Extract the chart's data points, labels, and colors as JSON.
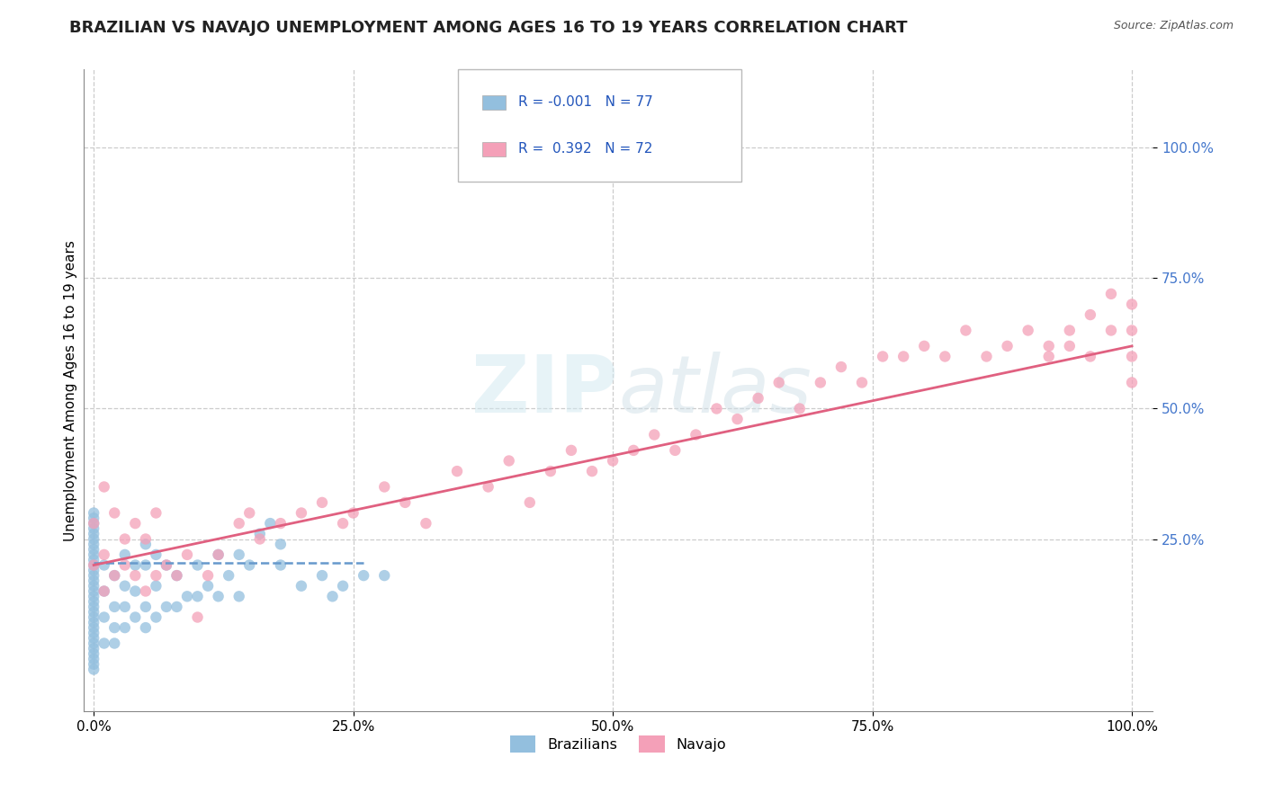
{
  "title": "BRAZILIAN VS NAVAJO UNEMPLOYMENT AMONG AGES 16 TO 19 YEARS CORRELATION CHART",
  "source": "Source: ZipAtlas.com",
  "ylabel_label": "Unemployment Among Ages 16 to 19 years",
  "x_tick_labels": [
    "0.0%",
    "25.0%",
    "50.0%",
    "75.0%",
    "100.0%"
  ],
  "x_tick_values": [
    0,
    25,
    50,
    75,
    100
  ],
  "y_tick_labels": [
    "25.0%",
    "50.0%",
    "75.0%",
    "100.0%"
  ],
  "y_tick_values": [
    25,
    50,
    75,
    100
  ],
  "xlim": [
    -1,
    102
  ],
  "ylim": [
    -8,
    115
  ],
  "blue_color": "#93bfde",
  "pink_color": "#f4a0b8",
  "blue_line_color": "#6699cc",
  "pink_line_color": "#e06080",
  "title_fontsize": 13,
  "axis_label_fontsize": 11,
  "tick_fontsize": 11,
  "background_color": "#ffffff",
  "grid_color": "#cccccc",
  "blue_scatter_x": [
    0,
    0,
    0,
    0,
    0,
    0,
    0,
    0,
    0,
    0,
    0,
    0,
    0,
    0,
    0,
    0,
    0,
    0,
    0,
    0,
    0,
    0,
    0,
    0,
    0,
    0,
    0,
    0,
    0,
    0,
    0,
    1,
    1,
    1,
    1,
    2,
    2,
    2,
    2,
    3,
    3,
    3,
    3,
    4,
    4,
    4,
    5,
    5,
    5,
    5,
    6,
    6,
    6,
    7,
    7,
    8,
    8,
    9,
    10,
    10,
    11,
    12,
    12,
    13,
    14,
    14,
    15,
    16,
    17,
    18,
    18,
    20,
    22,
    23,
    24,
    26,
    28
  ],
  "blue_scatter_y": [
    0,
    1,
    2,
    3,
    4,
    5,
    6,
    7,
    8,
    9,
    10,
    11,
    12,
    13,
    14,
    15,
    16,
    17,
    18,
    19,
    20,
    21,
    22,
    23,
    24,
    25,
    26,
    27,
    28,
    29,
    30,
    5,
    10,
    15,
    20,
    5,
    8,
    12,
    18,
    8,
    12,
    16,
    22,
    10,
    15,
    20,
    8,
    12,
    20,
    24,
    10,
    16,
    22,
    12,
    20,
    12,
    18,
    14,
    14,
    20,
    16,
    14,
    22,
    18,
    14,
    22,
    20,
    26,
    28,
    20,
    24,
    16,
    18,
    14,
    16,
    18,
    18
  ],
  "pink_scatter_x": [
    0,
    0,
    1,
    1,
    1,
    2,
    2,
    3,
    3,
    4,
    4,
    5,
    5,
    6,
    6,
    7,
    8,
    9,
    10,
    11,
    12,
    14,
    15,
    16,
    18,
    20,
    22,
    24,
    25,
    28,
    30,
    32,
    35,
    38,
    40,
    42,
    44,
    46,
    48,
    50,
    52,
    54,
    56,
    58,
    60,
    62,
    64,
    66,
    68,
    70,
    72,
    74,
    76,
    78,
    80,
    82,
    84,
    86,
    88,
    90,
    92,
    94,
    96,
    98,
    100,
    100,
    100,
    100,
    98,
    96,
    94,
    92
  ],
  "pink_scatter_y": [
    20,
    28,
    15,
    22,
    35,
    18,
    30,
    20,
    25,
    18,
    28,
    15,
    25,
    18,
    30,
    20,
    18,
    22,
    10,
    18,
    22,
    28,
    30,
    25,
    28,
    30,
    32,
    28,
    30,
    35,
    32,
    28,
    38,
    35,
    40,
    32,
    38,
    42,
    38,
    40,
    42,
    45,
    42,
    45,
    50,
    48,
    52,
    55,
    50,
    55,
    58,
    55,
    60,
    60,
    62,
    60,
    65,
    60,
    62,
    65,
    60,
    62,
    60,
    65,
    60,
    55,
    65,
    70,
    72,
    68,
    65,
    62
  ],
  "blue_trend_x": [
    0,
    26
  ],
  "blue_trend_y": [
    20.5,
    20.5
  ],
  "pink_trend_x": [
    0,
    100
  ],
  "pink_trend_y": [
    20,
    62
  ]
}
